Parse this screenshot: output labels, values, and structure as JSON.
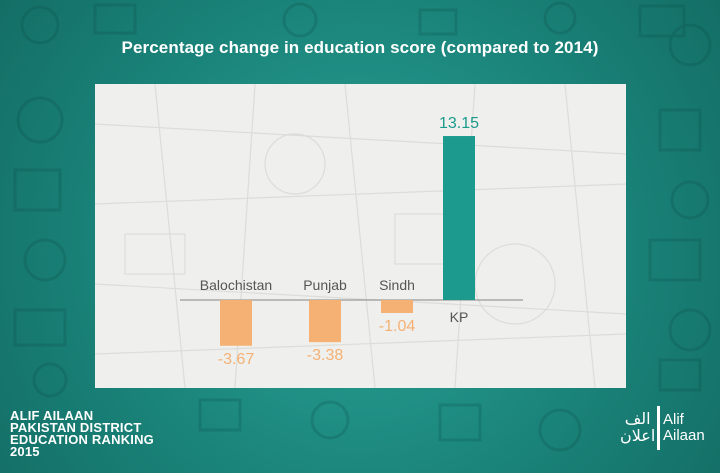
{
  "chart_data": {
    "type": "bar",
    "title": "Percentage change in education score (compared to 2014)",
    "categories": [
      "Balochistan",
      "Punjab",
      "Sindh",
      "KP"
    ],
    "values": [
      -3.67,
      -3.38,
      -1.04,
      13.15
    ],
    "value_labels": [
      "-3.67",
      "-3.38",
      "-1.04",
      "13.15"
    ],
    "ylim": [
      -5,
      15
    ],
    "grid": false,
    "colors": {
      "negative": "#f5b173",
      "positive": "#1c9a8e",
      "axis": "#9a9a9a"
    }
  },
  "branding": {
    "lines": [
      "ALIF AILAAN",
      "PAKISTAN DISTRICT",
      "EDUCATION RANKING",
      "2015"
    ],
    "logo_arabic": [
      "الف",
      "اعلان"
    ],
    "logo_latin": [
      "Alif",
      "Ailaan"
    ]
  }
}
